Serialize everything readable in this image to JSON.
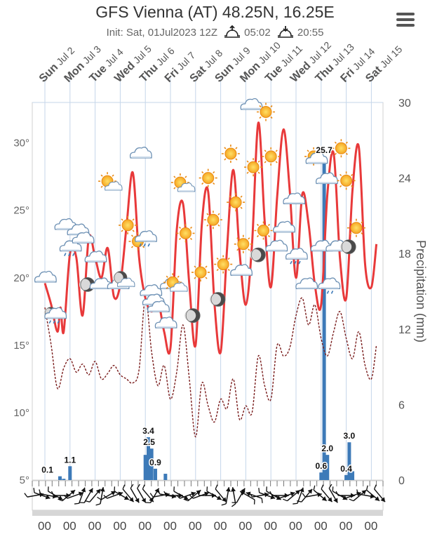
{
  "header": {
    "title": "GFS Vienna (AT) 48.25N, 16.25E",
    "init": "Init: Sat, 01Jul2023 12Z",
    "sunrise": "05:02",
    "sunset": "20:55"
  },
  "chart_data": {
    "type": "line",
    "title": "GFS Vienna (AT) 48.25N, 16.25E",
    "days": [
      {
        "name": "Sun",
        "date": "Jul 2"
      },
      {
        "name": "Mon",
        "date": "Jul 3"
      },
      {
        "name": "Tue",
        "date": "Jul 4"
      },
      {
        "name": "Wed",
        "date": "Jul 5"
      },
      {
        "name": "Thu",
        "date": "Jul 6"
      },
      {
        "name": "Fri",
        "date": "Jul 7"
      },
      {
        "name": "Sat",
        "date": "Jul 8"
      },
      {
        "name": "Sun",
        "date": "Jul 9"
      },
      {
        "name": "Mon",
        "date": "Jul 10"
      },
      {
        "name": "Tue",
        "date": "Jul 11"
      },
      {
        "name": "Wed",
        "date": "Jul 12"
      },
      {
        "name": "Thu",
        "date": "Jul 13"
      },
      {
        "name": "Fri",
        "date": "Jul 14"
      },
      {
        "name": "Sat",
        "date": "Jul 15"
      }
    ],
    "x_tick_label": "00",
    "temperature_axis": {
      "label": "",
      "ylim": [
        5,
        33
      ],
      "ticks": [
        "5°",
        "10°",
        "15°",
        "20°",
        "25°",
        "30°"
      ],
      "tick_values": [
        5,
        10,
        15,
        20,
        25,
        30
      ]
    },
    "precipitation_axis": {
      "label": "Precipitation (mm)",
      "ylim": [
        0,
        30
      ],
      "ticks": [
        "0",
        "6",
        "12",
        "18",
        "24",
        "30"
      ],
      "tick_values": [
        0,
        6,
        12,
        18,
        24,
        30
      ]
    },
    "series": [
      {
        "name": "Temperature",
        "unit": "°C",
        "color": "#e8393a",
        "points": [
          [
            0,
            19.6
          ],
          [
            0.25,
            18.0
          ],
          [
            0.5,
            16.0
          ],
          [
            0.62,
            17.8
          ],
          [
            0.75,
            16.0
          ],
          [
            1.0,
            21.8
          ],
          [
            1.25,
            21.5
          ],
          [
            1.5,
            17.2
          ],
          [
            1.75,
            23.0
          ],
          [
            2.0,
            21.5
          ],
          [
            2.25,
            20.0
          ],
          [
            2.5,
            22.2
          ],
          [
            2.75,
            18.6
          ],
          [
            3.0,
            19.5
          ],
          [
            3.25,
            23.8
          ],
          [
            3.5,
            27.8
          ],
          [
            3.75,
            21.5
          ],
          [
            4.0,
            18.5
          ],
          [
            4.25,
            17.5
          ],
          [
            4.5,
            18.3
          ],
          [
            4.75,
            16.0
          ],
          [
            5.0,
            14.8
          ],
          [
            5.25,
            23.5
          ],
          [
            5.5,
            25.5
          ],
          [
            5.75,
            19.5
          ],
          [
            6.0,
            15.0
          ],
          [
            6.25,
            24.0
          ],
          [
            6.5,
            26.4
          ],
          [
            6.75,
            18.2
          ],
          [
            7.0,
            14.5
          ],
          [
            7.25,
            22.0
          ],
          [
            7.5,
            28.0
          ],
          [
            7.75,
            22.0
          ],
          [
            8.0,
            18.0
          ],
          [
            8.25,
            22.5
          ],
          [
            8.5,
            31.5
          ],
          [
            8.75,
            24.2
          ],
          [
            9.0,
            19.3
          ],
          [
            9.25,
            26.0
          ],
          [
            9.5,
            31.0
          ],
          [
            9.75,
            26.5
          ],
          [
            10.0,
            20.0
          ],
          [
            10.25,
            26.2
          ],
          [
            10.5,
            24.0
          ],
          [
            10.75,
            19.5
          ],
          [
            11.0,
            18.0
          ],
          [
            11.25,
            26.2
          ],
          [
            11.5,
            29.2
          ],
          [
            11.75,
            21.5
          ],
          [
            12.0,
            18.5
          ],
          [
            12.25,
            26.5
          ],
          [
            12.5,
            29.7
          ],
          [
            12.75,
            21.0
          ],
          [
            13.0,
            19.3
          ],
          [
            13.2,
            22.5
          ]
        ]
      },
      {
        "name": "Dew point",
        "unit": "°C",
        "color": "#7a1d1d",
        "points": [
          [
            0,
            17.8
          ],
          [
            0.25,
            15.0
          ],
          [
            0.5,
            11.8
          ],
          [
            0.75,
            13.3
          ],
          [
            1.0,
            14.0
          ],
          [
            1.25,
            13.0
          ],
          [
            1.5,
            13.6
          ],
          [
            1.75,
            12.8
          ],
          [
            2.0,
            13.8
          ],
          [
            2.25,
            12.5
          ],
          [
            2.5,
            12.9
          ],
          [
            2.75,
            13.5
          ],
          [
            3.0,
            12.8
          ],
          [
            3.25,
            12.5
          ],
          [
            3.5,
            12.2
          ],
          [
            3.75,
            13.2
          ],
          [
            4.0,
            18.5
          ],
          [
            4.25,
            14.5
          ],
          [
            4.5,
            12.0
          ],
          [
            4.75,
            13.5
          ],
          [
            5.0,
            11.0
          ],
          [
            5.25,
            13.0
          ],
          [
            5.5,
            16.5
          ],
          [
            5.75,
            12.5
          ],
          [
            6.0,
            8.2
          ],
          [
            6.25,
            12.2
          ],
          [
            6.5,
            10.5
          ],
          [
            6.75,
            9.3
          ],
          [
            7.0,
            11.0
          ],
          [
            7.25,
            10.3
          ],
          [
            7.5,
            12.5
          ],
          [
            7.75,
            9.5
          ],
          [
            8.0,
            10.5
          ],
          [
            8.25,
            10.0
          ],
          [
            8.5,
            14.2
          ],
          [
            8.75,
            12.0
          ],
          [
            9.0,
            11.0
          ],
          [
            9.25,
            15.0
          ],
          [
            9.5,
            14.2
          ],
          [
            9.75,
            14.8
          ],
          [
            10.0,
            17.2
          ],
          [
            10.25,
            18.5
          ],
          [
            10.5,
            16.5
          ],
          [
            10.75,
            18.0
          ],
          [
            11.0,
            15.5
          ],
          [
            11.25,
            14.2
          ],
          [
            11.5,
            16.0
          ],
          [
            11.75,
            17.5
          ],
          [
            12.0,
            15.5
          ],
          [
            12.25,
            14.0
          ],
          [
            12.5,
            16.0
          ],
          [
            12.75,
            13.5
          ],
          [
            13.0,
            12.5
          ],
          [
            13.2,
            15.0
          ]
        ]
      },
      {
        "name": "Precipitation",
        "unit": "mm",
        "color": "#3d7ab8",
        "type": "bar",
        "axis": "right",
        "bars": [
          [
            0.6,
            0.3
          ],
          [
            0.75,
            0.1
          ],
          [
            1.0,
            1.1
          ],
          [
            4.0,
            2.0
          ],
          [
            4.12,
            3.4
          ],
          [
            4.25,
            2.5
          ],
          [
            4.4,
            0.9
          ],
          [
            4.8,
            0.5
          ],
          [
            11.0,
            0.6
          ],
          [
            11.12,
            25.7
          ],
          [
            11.25,
            2.0
          ],
          [
            12.0,
            0.4
          ],
          [
            12.12,
            3.0
          ],
          [
            12.25,
            0.7
          ]
        ],
        "data_labels": [
          {
            "text": "0.1",
            "x": 0.1,
            "y": 0.3
          },
          {
            "text": "1.1",
            "x": 1.0,
            "y": 1.1
          },
          {
            "text": "3.4",
            "x": 4.12,
            "y": 3.4
          },
          {
            "text": "2.5",
            "x": 4.15,
            "y": 2.5
          },
          {
            "text": "0.9",
            "x": 4.4,
            "y": 0.9
          },
          {
            "text": "25.7",
            "x": 11.12,
            "y": 25.7
          },
          {
            "text": "2.0",
            "x": 11.25,
            "y": 2.0
          },
          {
            "text": "0.6",
            "x": 11.0,
            "y": 0.6
          },
          {
            "text": "3.0",
            "x": 12.12,
            "y": 3.0
          },
          {
            "text": "0.4",
            "x": 12.0,
            "y": 0.4
          }
        ]
      }
    ],
    "weather_icons": [
      {
        "t": 0.0,
        "v": 20.0,
        "icon": "cloud"
      },
      {
        "t": 0.4,
        "v": 17.3,
        "icon": "cloud-rain-night"
      },
      {
        "t": 0.8,
        "v": 23.9,
        "icon": "cloud"
      },
      {
        "t": 1.0,
        "v": 22.3,
        "icon": "cloud-rain"
      },
      {
        "t": 1.3,
        "v": 23.5,
        "icon": "cloud"
      },
      {
        "t": 1.5,
        "v": 22.9,
        "icon": "cloud"
      },
      {
        "t": 1.7,
        "v": 19.5,
        "icon": "moon"
      },
      {
        "t": 2.0,
        "v": 21.5,
        "icon": "cloud"
      },
      {
        "t": 2.2,
        "v": 19.5,
        "icon": "cloud"
      },
      {
        "t": 2.6,
        "v": 26.9,
        "icon": "sun-cloud"
      },
      {
        "t": 2.9,
        "v": 19.5,
        "icon": "cloud"
      },
      {
        "t": 3.1,
        "v": 19.8,
        "icon": "moon-cloud"
      },
      {
        "t": 3.3,
        "v": 23.9,
        "icon": "sun"
      },
      {
        "t": 3.7,
        "v": 22.7,
        "icon": "sun"
      },
      {
        "t": 3.8,
        "v": 29.2,
        "icon": "cloud"
      },
      {
        "t": 4.0,
        "v": 23.0,
        "icon": "cloud-rain"
      },
      {
        "t": 4.2,
        "v": 19.0,
        "icon": "cloud"
      },
      {
        "t": 4.3,
        "v": 18.3,
        "icon": "cloud-rain"
      },
      {
        "t": 4.5,
        "v": 17.8,
        "icon": "cloud"
      },
      {
        "t": 4.8,
        "v": 16.6,
        "icon": "cloud"
      },
      {
        "t": 5.0,
        "v": 19.5,
        "icon": "cloud"
      },
      {
        "t": 5.2,
        "v": 19.4,
        "icon": "sun-cloud"
      },
      {
        "t": 5.5,
        "v": 26.8,
        "icon": "sun-cloud"
      },
      {
        "t": 5.6,
        "v": 23.3,
        "icon": "sun"
      },
      {
        "t": 5.9,
        "v": 17.2,
        "icon": "moon"
      },
      {
        "t": 6.2,
        "v": 20.4,
        "icon": "sun"
      },
      {
        "t": 6.5,
        "v": 27.4,
        "icon": "sun"
      },
      {
        "t": 6.7,
        "v": 24.3,
        "icon": "sun"
      },
      {
        "t": 6.9,
        "v": 18.4,
        "icon": "moon"
      },
      {
        "t": 7.1,
        "v": 21.0,
        "icon": "sun"
      },
      {
        "t": 7.4,
        "v": 29.2,
        "icon": "sun"
      },
      {
        "t": 7.6,
        "v": 25.6,
        "icon": "sun"
      },
      {
        "t": 7.8,
        "v": 20.5,
        "icon": "cloud"
      },
      {
        "t": 7.9,
        "v": 22.5,
        "icon": "sun"
      },
      {
        "t": 8.2,
        "v": 32.8,
        "icon": "cloud"
      },
      {
        "t": 8.3,
        "v": 28.2,
        "icon": "sun"
      },
      {
        "t": 8.5,
        "v": 21.7,
        "icon": "moon"
      },
      {
        "t": 8.7,
        "v": 23.5,
        "icon": "sun"
      },
      {
        "t": 8.8,
        "v": 32.3,
        "icon": "sun"
      },
      {
        "t": 9.0,
        "v": 29.0,
        "icon": "sun"
      },
      {
        "t": 9.2,
        "v": 22.3,
        "icon": "cloud"
      },
      {
        "t": 9.5,
        "v": 23.7,
        "icon": "cloud"
      },
      {
        "t": 9.9,
        "v": 25.8,
        "icon": "cloud"
      },
      {
        "t": 10.0,
        "v": 21.7,
        "icon": "cloud-rain"
      },
      {
        "t": 10.4,
        "v": 19.5,
        "icon": "cloud"
      },
      {
        "t": 10.7,
        "v": 29.0,
        "icon": "sun"
      },
      {
        "t": 10.8,
        "v": 28.8,
        "icon": "cloud"
      },
      {
        "t": 11.0,
        "v": 22.3,
        "icon": "cloud"
      },
      {
        "t": 11.2,
        "v": 27.3,
        "icon": "cloud"
      },
      {
        "t": 11.3,
        "v": 19.5,
        "icon": "cloud-rain"
      },
      {
        "t": 11.6,
        "v": 22.3,
        "icon": "cloud"
      },
      {
        "t": 11.8,
        "v": 29.6,
        "icon": "sun"
      },
      {
        "t": 12.0,
        "v": 27.2,
        "icon": "sun"
      },
      {
        "t": 12.1,
        "v": 22.3,
        "icon": "moon"
      },
      {
        "t": 12.4,
        "v": 23.7,
        "icon": "sun"
      }
    ],
    "wind_directions_deg": [
      260,
      290,
      280,
      300,
      270,
      230,
      250,
      200,
      210,
      220,
      190,
      240,
      250,
      300,
      320,
      330,
      330,
      320,
      210,
      260,
      280,
      270,
      300,
      250,
      230,
      250,
      270,
      300,
      320,
      190,
      170,
      210,
      120,
      110,
      260,
      290,
      300,
      270,
      250,
      230,
      200,
      220,
      260,
      310,
      320,
      330,
      300,
      270,
      250,
      230,
      280,
      310,
      320
    ]
  }
}
